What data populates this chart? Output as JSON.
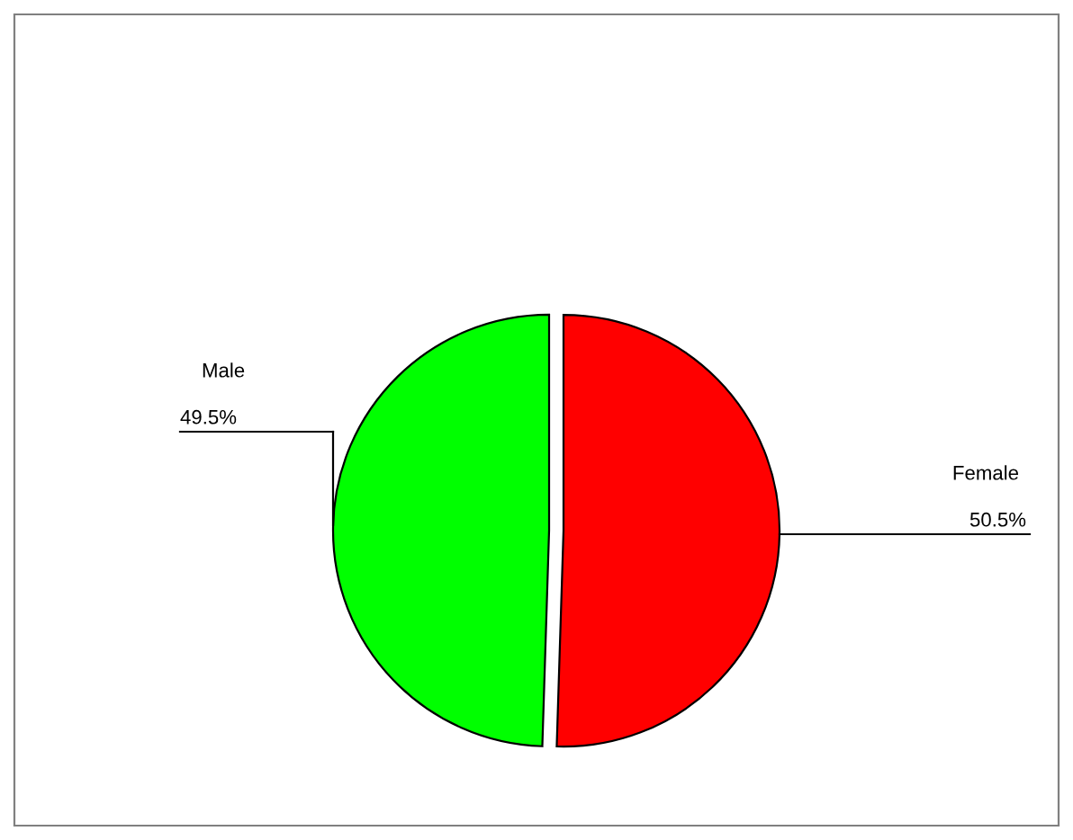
{
  "chart_data": {
    "type": "pie",
    "categories": [
      "Male",
      "Female"
    ],
    "values": [
      49.5,
      50.5
    ],
    "colors": [
      "#00ff00",
      "#ff0000"
    ],
    "value_labels": [
      "49.5%",
      "50.5%"
    ],
    "legend": false
  }
}
